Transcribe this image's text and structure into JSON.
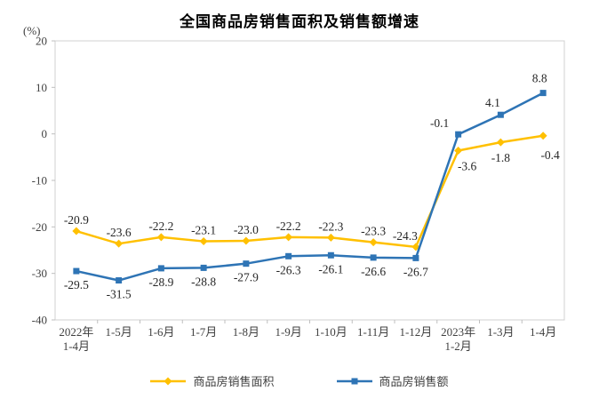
{
  "title": "全国商品房销售面积及销售额增速",
  "unit_label": "(%)",
  "chart_data": {
    "type": "line",
    "title": "全国商品房销售面积及销售额增速",
    "ylabel": "(%)",
    "categories": [
      [
        "2022年",
        "1-4月"
      ],
      [
        "1-5月"
      ],
      [
        "1-6月"
      ],
      [
        "1-7月"
      ],
      [
        "1-8月"
      ],
      [
        "1-9月"
      ],
      [
        "1-10月"
      ],
      [
        "1-11月"
      ],
      [
        "1-12月"
      ],
      [
        "2023年",
        "1-2月"
      ],
      [
        "1-3月"
      ],
      [
        "1-4月"
      ]
    ],
    "series": [
      {
        "name": "商品房销售面积",
        "color": "#FFC000",
        "marker": "diamond",
        "values": [
          -20.9,
          -23.6,
          -22.2,
          -23.1,
          -23.0,
          -22.2,
          -22.3,
          -23.3,
          -24.3,
          -3.6,
          -1.8,
          -0.4
        ]
      },
      {
        "name": "商品房销售额",
        "color": "#2E74B5",
        "marker": "square",
        "values": [
          -29.5,
          -31.5,
          -28.9,
          -28.8,
          -27.9,
          -26.3,
          -26.1,
          -26.6,
          -26.7,
          -0.1,
          4.1,
          8.8
        ]
      }
    ],
    "ylim": [
      -40,
      20
    ],
    "ytick_step": 10,
    "grid": false,
    "legend_position": "bottom",
    "axis_color": "#D0D0D0",
    "tick_color": "#BFBFBF",
    "axis_label_color": "#404040",
    "data_label_color": "#262626"
  }
}
